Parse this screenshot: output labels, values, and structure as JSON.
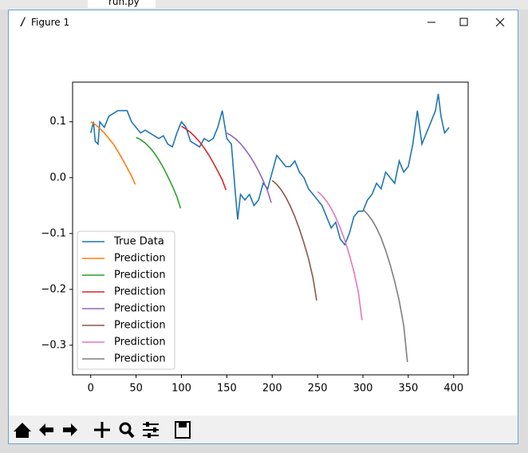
{
  "window": {
    "title": "Figure 1",
    "tab": "run.py"
  },
  "chart_data": {
    "type": "line",
    "legend": "lower left",
    "xlim": [
      -20,
      416
    ],
    "ylim": [
      -0.353,
      0.171
    ],
    "xticks": [
      0,
      50,
      100,
      150,
      200,
      250,
      300,
      350,
      400
    ],
    "yticks": [
      {
        "value": 0.1,
        "label": "0.1"
      },
      {
        "value": 0.0,
        "label": "0.0"
      },
      {
        "value": -0.1,
        "label": "−0.1"
      },
      {
        "value": -0.2,
        "label": "−0.2"
      },
      {
        "value": -0.3,
        "label": "−0.3"
      }
    ],
    "series": [
      {
        "name": "True Data",
        "color": "#1f77b4",
        "x": [
          0,
          3,
          5,
          8,
          10,
          15,
          20,
          25,
          30,
          35,
          40,
          45,
          50,
          55,
          60,
          65,
          70,
          75,
          80,
          85,
          90,
          95,
          100,
          105,
          110,
          115,
          120,
          125,
          130,
          135,
          140,
          145,
          150,
          155,
          160,
          162,
          165,
          170,
          175,
          180,
          185,
          190,
          195,
          200,
          205,
          210,
          215,
          220,
          225,
          230,
          235,
          240,
          245,
          250,
          255,
          260,
          265,
          270,
          275,
          280,
          285,
          290,
          295,
          300,
          305,
          310,
          315,
          320,
          325,
          330,
          335,
          340,
          345,
          350,
          355,
          360,
          365,
          370,
          375,
          380,
          383,
          386,
          390,
          395
        ],
        "values": [
          0.08,
          0.1,
          0.065,
          0.06,
          0.1,
          0.09,
          0.11,
          0.115,
          0.12,
          0.12,
          0.12,
          0.1,
          0.09,
          0.08,
          0.085,
          0.08,
          0.075,
          0.07,
          0.075,
          0.06,
          0.055,
          0.08,
          0.1,
          0.09,
          0.065,
          0.06,
          0.055,
          0.07,
          0.065,
          0.07,
          0.09,
          0.12,
          0.07,
          0.06,
          -0.04,
          -0.075,
          -0.03,
          -0.04,
          -0.03,
          -0.05,
          -0.04,
          -0.01,
          -0.02,
          0.01,
          0.04,
          0.03,
          0.02,
          0.02,
          0.03,
          0.01,
          0.0,
          -0.02,
          -0.03,
          -0.04,
          -0.05,
          -0.07,
          -0.09,
          -0.08,
          -0.11,
          -0.12,
          -0.1,
          -0.07,
          -0.06,
          -0.06,
          -0.04,
          -0.03,
          -0.01,
          -0.02,
          0.01,
          0.0,
          -0.01,
          0.03,
          0.01,
          0.02,
          0.06,
          0.12,
          0.06,
          0.08,
          0.1,
          0.12,
          0.15,
          0.11,
          0.08,
          0.09
        ]
      },
      {
        "name": "Prediction",
        "color": "#ff7f0e",
        "x": [
          0,
          5,
          10,
          15,
          20,
          25,
          30,
          35,
          40,
          45,
          49
        ],
        "values": [
          0.1,
          0.095,
          0.088,
          0.08,
          0.07,
          0.06,
          0.047,
          0.033,
          0.018,
          0.003,
          -0.012
        ]
      },
      {
        "name": "Prediction",
        "color": "#2ca02c",
        "x": [
          50,
          55,
          60,
          65,
          70,
          75,
          80,
          85,
          90,
          95,
          99
        ],
        "values": [
          0.072,
          0.068,
          0.062,
          0.054,
          0.044,
          0.032,
          0.018,
          0.002,
          -0.015,
          -0.034,
          -0.055
        ]
      },
      {
        "name": "Prediction",
        "color": "#d62728",
        "x": [
          100,
          105,
          110,
          115,
          120,
          125,
          130,
          135,
          140,
          145,
          149
        ],
        "values": [
          0.092,
          0.087,
          0.081,
          0.073,
          0.064,
          0.053,
          0.041,
          0.027,
          0.012,
          -0.004,
          -0.022
        ]
      },
      {
        "name": "Prediction",
        "color": "#9467bd",
        "x": [
          150,
          155,
          160,
          165,
          170,
          175,
          180,
          185,
          190,
          195,
          199
        ],
        "values": [
          0.08,
          0.075,
          0.069,
          0.061,
          0.051,
          0.04,
          0.027,
          0.012,
          -0.005,
          -0.024,
          -0.045
        ]
      },
      {
        "name": "Prediction",
        "color": "#8c564b",
        "x": [
          200,
          205,
          210,
          215,
          220,
          225,
          230,
          235,
          240,
          245,
          249
        ],
        "values": [
          -0.005,
          -0.012,
          -0.022,
          -0.035,
          -0.051,
          -0.07,
          -0.092,
          -0.117,
          -0.145,
          -0.18,
          -0.22
        ]
      },
      {
        "name": "Prediction",
        "color": "#e377c2",
        "x": [
          250,
          255,
          260,
          265,
          270,
          275,
          280,
          285,
          290,
          295,
          299
        ],
        "values": [
          -0.025,
          -0.032,
          -0.042,
          -0.055,
          -0.071,
          -0.09,
          -0.112,
          -0.138,
          -0.168,
          -0.205,
          -0.255
        ]
      },
      {
        "name": "Prediction",
        "color": "#7f7f7f",
        "x": [
          300,
          305,
          310,
          315,
          320,
          325,
          330,
          335,
          340,
          345,
          349
        ],
        "values": [
          -0.057,
          -0.065,
          -0.076,
          -0.09,
          -0.108,
          -0.13,
          -0.156,
          -0.186,
          -0.22,
          -0.265,
          -0.33
        ]
      }
    ]
  }
}
